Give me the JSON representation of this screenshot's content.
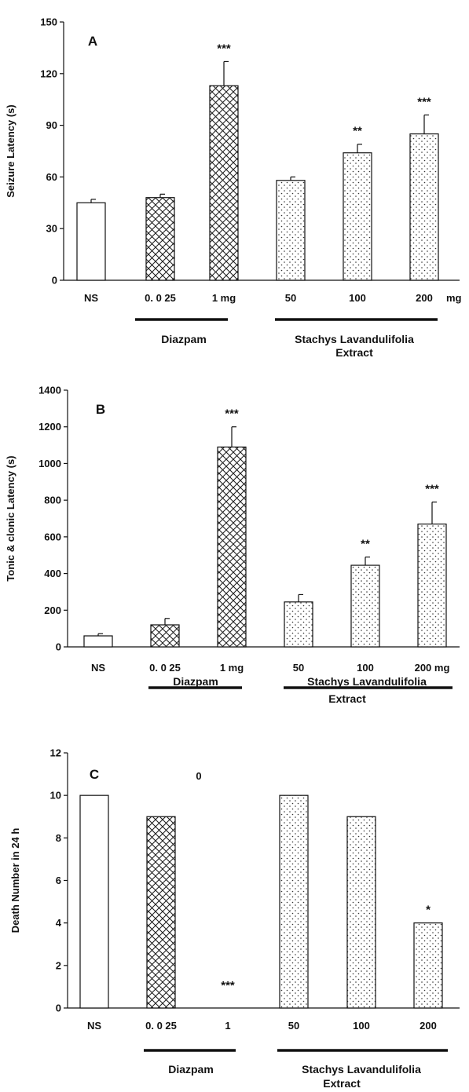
{
  "chart_data": [
    {
      "type": "bar",
      "panel": "A",
      "ylabel": "Seizure Latency (s)",
      "ylim": [
        0,
        150
      ],
      "yticks": [
        "0",
        "30",
        "60",
        "90",
        "120",
        "150"
      ],
      "categories": [
        "NS",
        "0. 0 25",
        "1 mg",
        "50",
        "100",
        "200"
      ],
      "values": [
        45,
        48,
        113,
        58,
        74,
        85
      ],
      "errors": [
        2,
        2,
        14,
        2,
        5,
        11
      ],
      "significance": [
        "",
        "",
        "***",
        "",
        "**",
        "***"
      ],
      "unit_label": "mg",
      "groups": [
        {
          "label": "Diazpam",
          "label2": ""
        },
        {
          "label": "Stachys  Lavandulifolia",
          "label2": "Extract"
        }
      ]
    },
    {
      "type": "bar",
      "panel": "B",
      "ylabel": "Tonic & clonic  Latency (s)",
      "ylim": [
        0,
        1400
      ],
      "yticks": [
        "0",
        "200",
        "400",
        "600",
        "800",
        "1000",
        "1200",
        "1400"
      ],
      "categories": [
        "NS",
        "0. 0 25",
        "1 mg",
        "50",
        "100",
        "200 mg"
      ],
      "values": [
        60,
        120,
        1090,
        245,
        445,
        670
      ],
      "errors": [
        12,
        35,
        110,
        40,
        45,
        120
      ],
      "significance": [
        "",
        "",
        "***",
        "",
        "**",
        "***"
      ],
      "unit_label": "",
      "groups": [
        {
          "label": "Diazpam",
          "label2": ""
        },
        {
          "label": "Stachys  Lavandulifolia",
          "label2": "Extract"
        }
      ]
    },
    {
      "type": "bar",
      "panel": "C",
      "ylabel": "Death Number in 24  h",
      "ylim": [
        0,
        12
      ],
      "yticks": [
        "0",
        "2",
        "4",
        "6",
        "8",
        "10",
        "12"
      ],
      "categories": [
        "NS",
        "0. 0 25",
        "1",
        "50",
        "100",
        "200"
      ],
      "values": [
        10,
        9,
        0,
        10,
        9,
        4
      ],
      "errors": [
        0,
        0,
        0,
        0,
        0,
        0
      ],
      "significance": [
        "",
        "",
        "***",
        "",
        "",
        "*"
      ],
      "annotation": "0",
      "unit_label": "",
      "groups": [
        {
          "label": "Diazpam",
          "label2": ""
        },
        {
          "label": "Stachys  Lavandulifolia",
          "label2": "Extract"
        }
      ]
    }
  ],
  "colors": {
    "bar_edge": "#111111",
    "hatch": "#222222",
    "dots": "#333333",
    "background": "#ffffff"
  }
}
